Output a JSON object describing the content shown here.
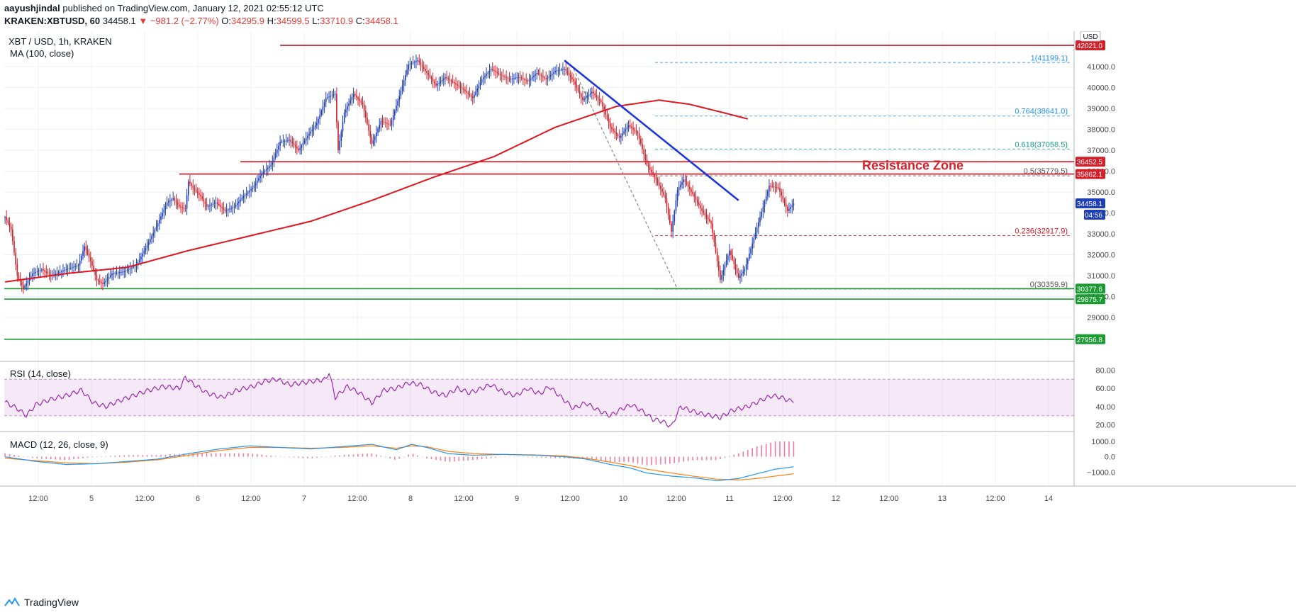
{
  "header": {
    "user": "aayushjindal",
    "published": "published on TradingView.com, January 12, 2021 02:55:12 UTC",
    "symbol": "KRAKEN:XBTUSD,",
    "interval": "60",
    "last": "34458.1",
    "change": "▼ −981.2 (−2.77%)",
    "o_label": "O:",
    "o": "34295.9",
    "h_label": "H:",
    "h": "34599.5",
    "l_label": "L:",
    "l": "33710.9",
    "c_label": "C:",
    "c": "34458.1"
  },
  "chart_title": "XBT / USD, 1h, KRAKEN",
  "ma_label": "MA (100, close)",
  "currency_badge": "USD",
  "annotation": "Resistance Zone",
  "countdown": "04:56",
  "rsi_label": "RSI (14, close)",
  "macd_label": "MACD (12, 26, close, 9)",
  "footer": {
    "brand": "TradingView"
  },
  "colors": {
    "up": "#1e3eb5",
    "down": "#d3202a",
    "ma": "#e0161c",
    "support": "#1c9a33",
    "trend": "#1a35e0",
    "rsi": "#9c27b0",
    "macd": "#2196f3",
    "signal": "#ff7f0e"
  },
  "chart_data": {
    "type": "candlestick",
    "title": "XBT / USD, 1h, KRAKEN",
    "ylim": [
      27000,
      42700
    ],
    "y_ticks": [
      29000,
      30000,
      31000,
      32000,
      33000,
      34000,
      35000,
      36000,
      37000,
      38000,
      39000,
      40000,
      41000
    ],
    "y_tick_labels": [
      "29000.0",
      "30000.0",
      "31000.0",
      "32000.0",
      "33000.0",
      "34000.0",
      "35000.0",
      "36000.0",
      "37000.0",
      "38000.0",
      "39000.0",
      "40000.0",
      "41000.0"
    ],
    "x_tick_labels": [
      "12:00",
      "5",
      "12:00",
      "6",
      "12:00",
      "7",
      "12:00",
      "8",
      "12:00",
      "9",
      "12:00",
      "10",
      "12:00",
      "11",
      "12:00",
      "12",
      "12:00",
      "13",
      "12:00",
      "14"
    ],
    "close_anchors": [
      [
        0,
        33800
      ],
      [
        4,
        33200
      ],
      [
        8,
        31000
      ],
      [
        12,
        30400
      ],
      [
        18,
        31100
      ],
      [
        24,
        31300
      ],
      [
        30,
        31000
      ],
      [
        40,
        31300
      ],
      [
        48,
        31500
      ],
      [
        52,
        32400
      ],
      [
        56,
        31700
      ],
      [
        60,
        30800
      ],
      [
        64,
        30600
      ],
      [
        70,
        31100
      ],
      [
        78,
        31200
      ],
      [
        86,
        31500
      ],
      [
        94,
        32600
      ],
      [
        100,
        33500
      ],
      [
        106,
        34500
      ],
      [
        110,
        34700
      ],
      [
        114,
        34300
      ],
      [
        118,
        34200
      ],
      [
        120,
        35500
      ],
      [
        124,
        35100
      ],
      [
        128,
        34800
      ],
      [
        132,
        34300
      ],
      [
        138,
        34500
      ],
      [
        144,
        34100
      ],
      [
        150,
        34300
      ],
      [
        156,
        34800
      ],
      [
        162,
        35200
      ],
      [
        168,
        35900
      ],
      [
        174,
        36300
      ],
      [
        180,
        37400
      ],
      [
        186,
        37500
      ],
      [
        192,
        37000
      ],
      [
        198,
        37700
      ],
      [
        204,
        38300
      ],
      [
        210,
        39500
      ],
      [
        216,
        39700
      ],
      [
        218,
        37000
      ],
      [
        222,
        38800
      ],
      [
        228,
        39700
      ],
      [
        234,
        39200
      ],
      [
        240,
        37300
      ],
      [
        246,
        38400
      ],
      [
        252,
        38200
      ],
      [
        258,
        39600
      ],
      [
        264,
        41100
      ],
      [
        270,
        41300
      ],
      [
        276,
        40700
      ],
      [
        282,
        40100
      ],
      [
        288,
        40500
      ],
      [
        294,
        40200
      ],
      [
        300,
        39900
      ],
      [
        306,
        39500
      ],
      [
        312,
        40400
      ],
      [
        318,
        40900
      ],
      [
        324,
        40600
      ],
      [
        330,
        40400
      ],
      [
        336,
        40500
      ],
      [
        342,
        40300
      ],
      [
        348,
        40700
      ],
      [
        354,
        40400
      ],
      [
        360,
        40800
      ],
      [
        366,
        40900
      ],
      [
        372,
        40300
      ],
      [
        378,
        39400
      ],
      [
        384,
        39800
      ],
      [
        390,
        39300
      ],
      [
        396,
        38100
      ],
      [
        402,
        37600
      ],
      [
        408,
        38200
      ],
      [
        414,
        37800
      ],
      [
        420,
        36300
      ],
      [
        426,
        35600
      ],
      [
        432,
        34700
      ],
      [
        436,
        33100
      ],
      [
        440,
        35100
      ],
      [
        444,
        35600
      ],
      [
        450,
        34900
      ],
      [
        456,
        34100
      ],
      [
        462,
        33500
      ],
      [
        468,
        30800
      ],
      [
        474,
        32200
      ],
      [
        480,
        30900
      ],
      [
        484,
        31300
      ],
      [
        488,
        32300
      ],
      [
        494,
        33800
      ],
      [
        500,
        35300
      ],
      [
        506,
        35200
      ],
      [
        512,
        34100
      ],
      [
        516,
        34458
      ]
    ],
    "ma_anchors": [
      [
        0,
        30700
      ],
      [
        40,
        31100
      ],
      [
        80,
        31400
      ],
      [
        120,
        32200
      ],
      [
        160,
        32900
      ],
      [
        200,
        33600
      ],
      [
        240,
        34600
      ],
      [
        280,
        35700
      ],
      [
        320,
        36700
      ],
      [
        360,
        38100
      ],
      [
        400,
        39100
      ],
      [
        428,
        39400
      ],
      [
        448,
        39200
      ],
      [
        470,
        38800
      ],
      [
        486,
        38500
      ]
    ],
    "overlays": {
      "red_lines": [
        {
          "label": "42021.0",
          "value": 42021,
          "from_bar": 180
        },
        {
          "label": "36452.5",
          "value": 36452.5,
          "from_bar": 154
        },
        {
          "label": "35862.1",
          "value": 35862.1,
          "from_bar": 114
        }
      ],
      "green_lines": [
        {
          "label": "30377.6",
          "value": 30377.6
        },
        {
          "label": "29875.7",
          "value": 29875.7
        },
        {
          "label": "27956.8",
          "value": 27956.8
        }
      ],
      "fib_levels": [
        {
          "label": "1(41199.1)",
          "value": 41199.1,
          "color": "#2196f3"
        },
        {
          "label": "0.764(38641.0)",
          "value": 38641.0,
          "color": "#2196f3"
        },
        {
          "label": "0.618(37058.5)",
          "value": 37058.5,
          "color": "#1c9a8a"
        },
        {
          "label": "0.5(35779.5)",
          "value": 35779.5,
          "color": "#555555"
        },
        {
          "label": "0.236(32917.9)",
          "value": 32917.9,
          "color": "#d3202a"
        },
        {
          "label": "0(30359.9)",
          "value": 30359.9,
          "color": "#555555"
        }
      ],
      "trendline": {
        "start": [
          366,
          41300
        ],
        "end": [
          480,
          34600
        ]
      },
      "fib_diag": {
        "start": [
          372,
          40900
        ],
        "end": [
          440,
          30360
        ]
      },
      "last_price": {
        "label": "34458.1",
        "value": 34458.1
      }
    },
    "rsi": {
      "ylim": [
        15,
        85
      ],
      "ticks": [
        20,
        40,
        60,
        80
      ],
      "tick_labels": [
        "20.00",
        "40.00",
        "60.00",
        "80.00"
      ],
      "band": [
        30,
        70
      ],
      "anchors": [
        [
          0,
          45
        ],
        [
          8,
          38
        ],
        [
          14,
          30
        ],
        [
          20,
          42
        ],
        [
          30,
          48
        ],
        [
          40,
          52
        ],
        [
          50,
          58
        ],
        [
          58,
          44
        ],
        [
          66,
          40
        ],
        [
          74,
          46
        ],
        [
          84,
          52
        ],
        [
          94,
          58
        ],
        [
          104,
          62
        ],
        [
          114,
          60
        ],
        [
          118,
          72
        ],
        [
          124,
          64
        ],
        [
          132,
          55
        ],
        [
          142,
          50
        ],
        [
          152,
          58
        ],
        [
          162,
          62
        ],
        [
          170,
          68
        ],
        [
          178,
          70
        ],
        [
          186,
          64
        ],
        [
          194,
          66
        ],
        [
          202,
          68
        ],
        [
          210,
          70
        ],
        [
          212,
          78
        ],
        [
          216,
          50
        ],
        [
          224,
          62
        ],
        [
          232,
          55
        ],
        [
          240,
          44
        ],
        [
          248,
          58
        ],
        [
          256,
          60
        ],
        [
          264,
          66
        ],
        [
          272,
          64
        ],
        [
          280,
          56
        ],
        [
          288,
          52
        ],
        [
          296,
          60
        ],
        [
          304,
          55
        ],
        [
          312,
          60
        ],
        [
          318,
          64
        ],
        [
          326,
          56
        ],
        [
          334,
          52
        ],
        [
          342,
          60
        ],
        [
          350,
          54
        ],
        [
          356,
          62
        ],
        [
          364,
          50
        ],
        [
          372,
          38
        ],
        [
          380,
          44
        ],
        [
          388,
          36
        ],
        [
          396,
          30
        ],
        [
          404,
          38
        ],
        [
          410,
          42
        ],
        [
          418,
          34
        ],
        [
          424,
          26
        ],
        [
          430,
          24
        ],
        [
          436,
          18
        ],
        [
          442,
          40
        ],
        [
          448,
          36
        ],
        [
          456,
          32
        ],
        [
          462,
          30
        ],
        [
          468,
          28
        ],
        [
          476,
          36
        ],
        [
          486,
          40
        ],
        [
          496,
          48
        ],
        [
          502,
          52
        ],
        [
          508,
          50
        ],
        [
          514,
          46
        ],
        [
          516,
          47
        ]
      ]
    },
    "macd": {
      "ylim": [
        -1800,
        1400
      ],
      "ticks": [
        -1000,
        0,
        1000
      ],
      "tick_labels": [
        "−1000.0",
        "0.0",
        "1000.0"
      ],
      "macd_anchors": [
        [
          0,
          0
        ],
        [
          20,
          -300
        ],
        [
          40,
          -500
        ],
        [
          60,
          -450
        ],
        [
          80,
          -300
        ],
        [
          100,
          -150
        ],
        [
          120,
          200
        ],
        [
          140,
          500
        ],
        [
          160,
          700
        ],
        [
          180,
          600
        ],
        [
          200,
          500
        ],
        [
          220,
          650
        ],
        [
          240,
          800
        ],
        [
          256,
          450
        ],
        [
          266,
          800
        ],
        [
          276,
          600
        ],
        [
          290,
          200
        ],
        [
          306,
          100
        ],
        [
          326,
          150
        ],
        [
          346,
          100
        ],
        [
          366,
          0
        ],
        [
          380,
          -150
        ],
        [
          396,
          -500
        ],
        [
          408,
          -700
        ],
        [
          420,
          -1050
        ],
        [
          436,
          -1250
        ],
        [
          450,
          -1350
        ],
        [
          466,
          -1550
        ],
        [
          480,
          -1400
        ],
        [
          492,
          -1100
        ],
        [
          504,
          -800
        ],
        [
          516,
          -650
        ]
      ],
      "signal_anchors": [
        [
          0,
          -100
        ],
        [
          20,
          -250
        ],
        [
          40,
          -400
        ],
        [
          60,
          -450
        ],
        [
          80,
          -350
        ],
        [
          100,
          -200
        ],
        [
          120,
          100
        ],
        [
          140,
          400
        ],
        [
          160,
          600
        ],
        [
          180,
          600
        ],
        [
          200,
          550
        ],
        [
          220,
          600
        ],
        [
          240,
          700
        ],
        [
          256,
          550
        ],
        [
          266,
          700
        ],
        [
          276,
          650
        ],
        [
          290,
          350
        ],
        [
          306,
          200
        ],
        [
          326,
          150
        ],
        [
          346,
          120
        ],
        [
          366,
          50
        ],
        [
          380,
          -100
        ],
        [
          396,
          -350
        ],
        [
          408,
          -550
        ],
        [
          420,
          -800
        ],
        [
          436,
          -1050
        ],
        [
          450,
          -1250
        ],
        [
          466,
          -1450
        ],
        [
          480,
          -1500
        ],
        [
          492,
          -1400
        ],
        [
          504,
          -1250
        ],
        [
          516,
          -1100
        ]
      ]
    }
  }
}
